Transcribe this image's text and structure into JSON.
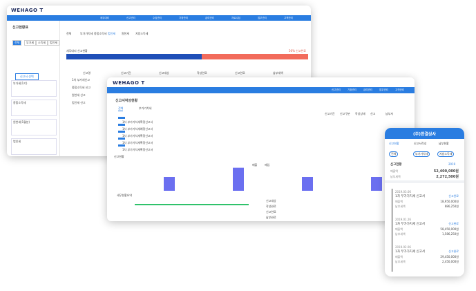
{
  "back_window": {
    "logo": "WEHAGO T",
    "nav": [
      "세무대리",
      "신고관리",
      "수임관리",
      "기장관리",
      "급여관리",
      "자료수집",
      "업무관리",
      "고객관리"
    ],
    "title": "신고현황표",
    "filters": [
      "전체",
      "부가세",
      "소득세",
      "법인세"
    ],
    "select_button": "신고서 선택",
    "side_items": [
      "부가세(1기)",
      "종합소득세",
      "원천세(1월분)",
      "법인세"
    ],
    "tabs": [
      "전체",
      "부가가치세",
      "종합소득세",
      "법인세",
      "원천세",
      "지방소득세"
    ],
    "progress": {
      "label": "세무대리 신고현황",
      "status": "56% 신고완료",
      "value": 56
    },
    "columns": [
      "신고명",
      "신고기간",
      "신고대상",
      "작성완료",
      "신고완료",
      "납부세액"
    ],
    "rows": [
      "1차 부가세신고",
      "종합소득세 신고",
      "원천세 신고",
      "법인세 신고"
    ]
  },
  "main_window": {
    "logo": "WEHAGO T",
    "nav": [
      "신고관리",
      "기장관리",
      "급여관리",
      "업무관리",
      "고객관리"
    ],
    "title": "신고서작성현황",
    "tabs": [
      "전체",
      "부가가치세"
    ],
    "columns": [
      "신고기간",
      "신고구분",
      "작성상태",
      "신고",
      "납부서"
    ],
    "rows": [
      "1차 부가가치세확정신고서",
      "1차 부가가치세예정신고서",
      "1차 부가가치세확정신고서",
      "1차 부가가치세확정신고서",
      "1차 부가가치세확정신고서"
    ],
    "chart": {
      "type": "bar",
      "title": "신고현황",
      "series": [
        {
          "name": "매출",
          "color": "#6b6ff0",
          "values": [
            3,
            5,
            3,
            3
          ]
        }
      ],
      "legend": [
        "매출",
        "매입"
      ],
      "ylim": [
        0,
        6
      ]
    },
    "summary_title": "세무현황요약",
    "summary_items": [
      "신고대상",
      "작성완료",
      "신고완료",
      "납부완료"
    ]
  },
  "phone": {
    "company": "(주)한결상사",
    "tabs": [
      "신고현황",
      "신고서작성",
      "납부현황"
    ],
    "pills": [
      "전체",
      "부가가치세",
      "지방소득세"
    ],
    "summary_title": "신고현황",
    "summary_year": "2019",
    "summary_rows": [
      {
        "label": "매출액",
        "value": "52,400,000원"
      },
      {
        "label": "납부세액",
        "value": "2,272,500원"
      }
    ],
    "items": [
      {
        "date": "2019.03.06",
        "title": "1차 부가가치세 신고서",
        "status": "신고완료",
        "label1": "매출액",
        "amount1": "18,950,000원",
        "label2": "납부세액",
        "amount2": "686,250원"
      },
      {
        "date": "2019.01.26",
        "title": "1차 부가가치세 신고서",
        "status": "신고완료",
        "label1": "매출액",
        "amount1": "58,450,000원",
        "label2": "납부세액",
        "amount2": "1,586,250원"
      },
      {
        "date": "2019.02.06",
        "title": "1차 부가가치세 신고서",
        "status": "신고완료",
        "label1": "매출액",
        "amount1": "29,450,000원",
        "label2": "납부세액",
        "amount2": "2,450,000원"
      }
    ]
  }
}
